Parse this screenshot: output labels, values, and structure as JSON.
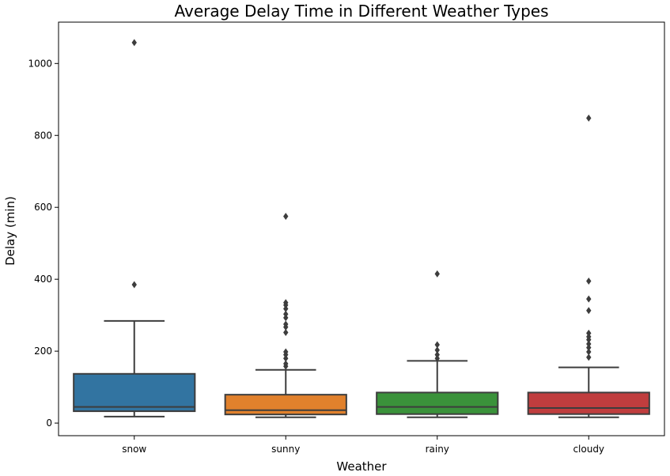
{
  "chart_data": {
    "type": "box",
    "title": "Average Delay Time in Different Weather Types",
    "xlabel": "Weather",
    "ylabel": "Delay (min)",
    "ylim": [
      -35,
      1115
    ],
    "yticks": [
      0,
      200,
      400,
      600,
      800,
      1000
    ],
    "grid": false,
    "categories": [
      "snow",
      "sunny",
      "rainy",
      "cloudy"
    ],
    "colors": {
      "snow": "#3274a1",
      "sunny": "#e1812c",
      "rainy": "#3a923a",
      "cloudy": "#c03d3e",
      "lines": "#3d3d3d"
    },
    "boxes": [
      {
        "category": "snow",
        "whisker_low": 18,
        "q1": 33,
        "median": 45,
        "q3": 137,
        "whisker_high": 284,
        "outliers": [
          385,
          1058
        ]
      },
      {
        "category": "sunny",
        "whisker_low": 16,
        "q1": 24,
        "median": 36,
        "q3": 79,
        "whisker_high": 148,
        "outliers": [
          158,
          165,
          180,
          190,
          198,
          252,
          267,
          275,
          293,
          303,
          318,
          328,
          335,
          575
        ]
      },
      {
        "category": "rainy",
        "whisker_low": 16,
        "q1": 25,
        "median": 45,
        "q3": 85,
        "whisker_high": 173,
        "outliers": [
          180,
          190,
          203,
          218,
          415
        ]
      },
      {
        "category": "cloudy",
        "whisker_low": 16,
        "q1": 25,
        "median": 42,
        "q3": 85,
        "whisker_high": 155,
        "outliers": [
          183,
          198,
          210,
          220,
          232,
          240,
          250,
          313,
          345,
          395,
          848
        ]
      }
    ]
  }
}
